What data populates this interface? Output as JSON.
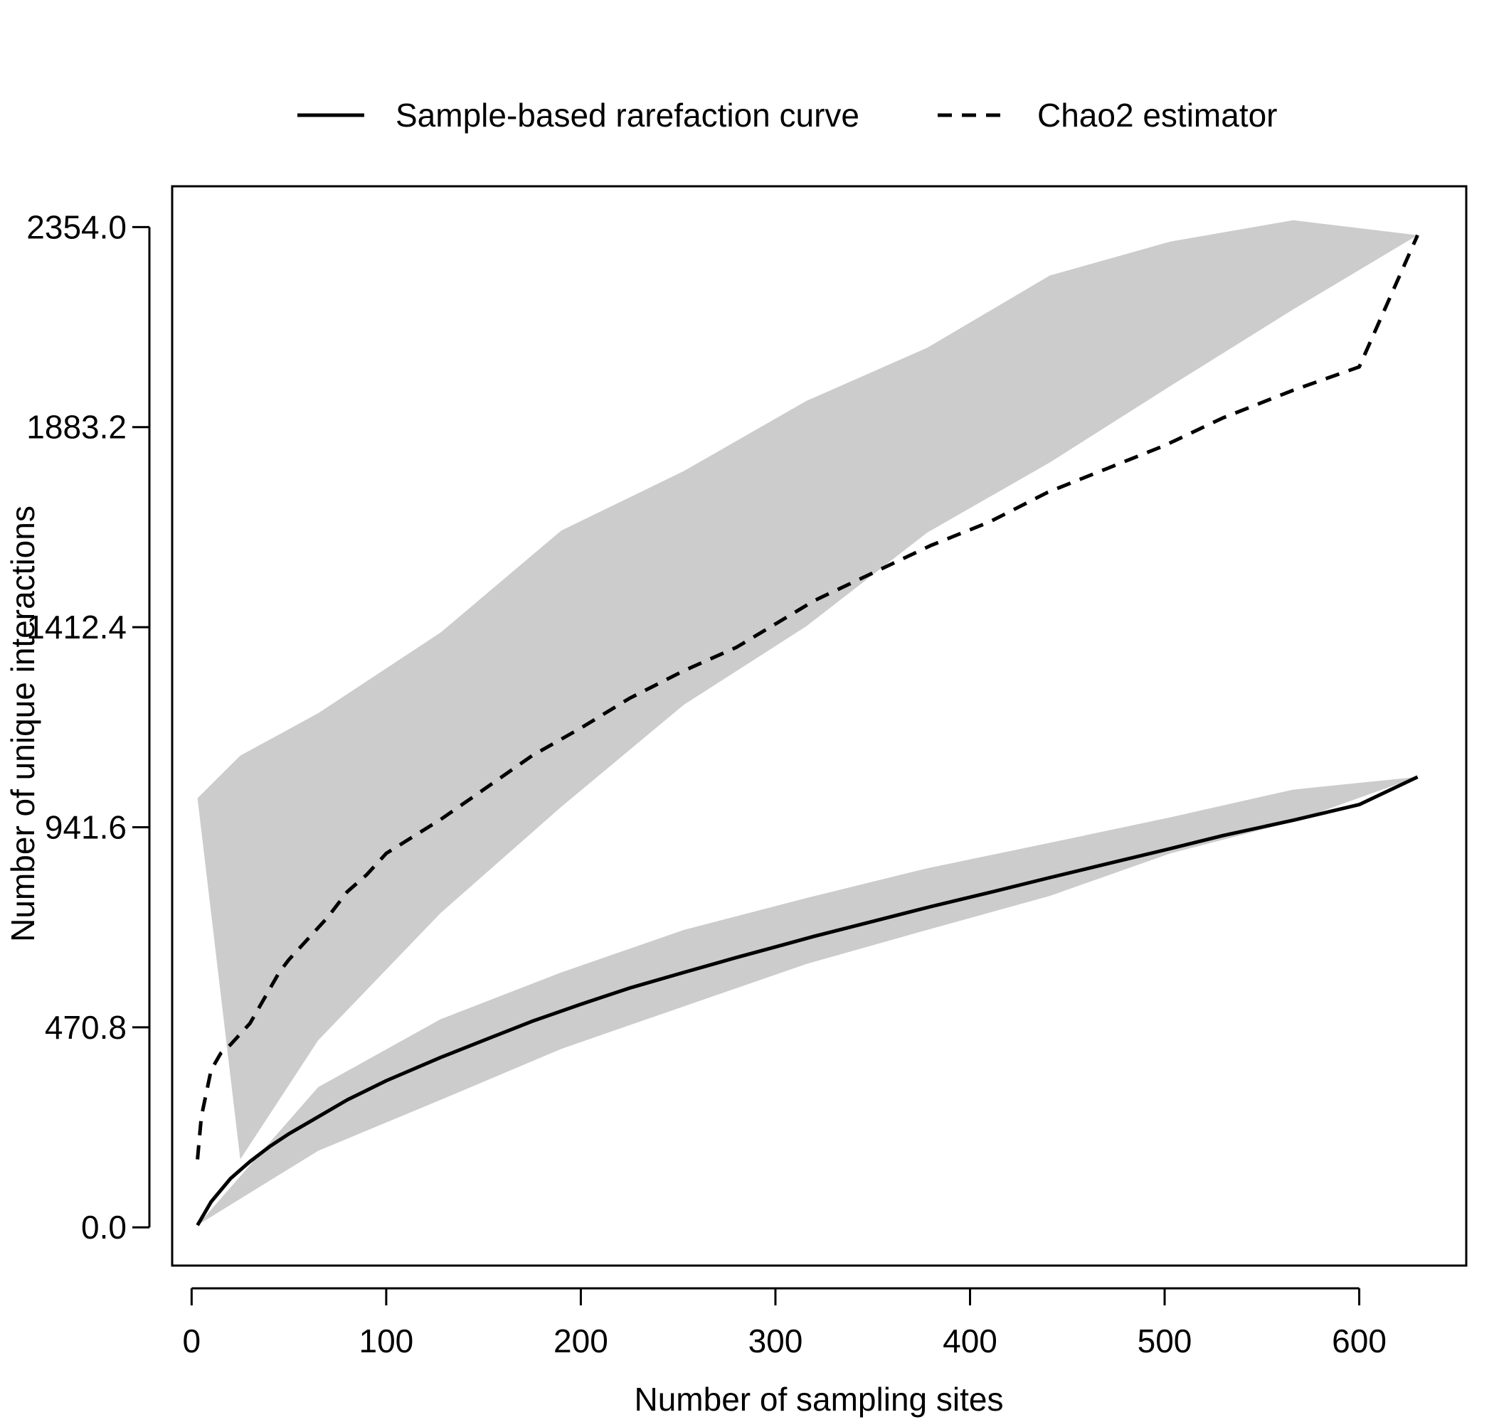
{
  "chart_data": {
    "type": "line",
    "xlabel": "Number of sampling sites",
    "ylabel": "Number of unique interactions",
    "xlim": [
      -10,
      655
    ],
    "ylim": [
      -90,
      2450
    ],
    "x_ticks": [
      0,
      100,
      200,
      300,
      400,
      500,
      600
    ],
    "x_tick_labels": [
      "0",
      "100",
      "200",
      "300",
      "400",
      "500",
      "600"
    ],
    "y_ticks": [
      0,
      470.8,
      941.6,
      1412.4,
      1883.2,
      2354.0
    ],
    "y_tick_labels": [
      "0.0",
      "470.8",
      "941.6",
      "1412.4",
      "1883.2",
      "2354.0"
    ],
    "grid": false,
    "legend_position": "top",
    "colors": {
      "band": "#cccccc",
      "line": "#000000"
    },
    "series": [
      {
        "name": "Sample-based rarefaction curve",
        "line_style": "solid",
        "x": [
          3,
          10,
          20,
          30,
          40,
          50,
          65,
          80,
          100,
          128,
          150,
          175,
          200,
          225,
          253,
          280,
          300,
          320,
          350,
          380,
          410,
          440,
          470,
          500,
          530,
          566,
          600,
          630
        ],
        "y": [
          5,
          60,
          115,
          155,
          190,
          220,
          260,
          300,
          345,
          400,
          440,
          485,
          525,
          563,
          600,
          635,
          660,
          685,
          720,
          755,
          788,
          822,
          855,
          888,
          922,
          958,
          995,
          1060
        ],
        "band_x": [
          3,
          65,
          128,
          190,
          253,
          316,
          378,
          441,
          503,
          566,
          630
        ],
        "band_upper": [
          5,
          330,
          490,
          600,
          700,
          775,
          845,
          905,
          965,
          1030,
          1060
        ],
        "band_lower": [
          5,
          180,
          300,
          420,
          520,
          620,
          700,
          780,
          880,
          955,
          1060
        ]
      },
      {
        "name": "Chao2 estimator",
        "line_style": "dashed",
        "x": [
          3,
          5,
          10,
          15,
          20,
          25,
          30,
          35,
          40,
          45,
          50,
          60,
          70,
          80,
          90,
          100,
          128,
          150,
          175,
          200,
          225,
          253,
          280,
          300,
          320,
          350,
          380,
          410,
          440,
          470,
          500,
          530,
          566,
          600,
          630
        ],
        "y": [
          160,
          260,
          370,
          410,
          430,
          455,
          480,
          520,
          560,
          600,
          630,
          680,
          730,
          790,
          830,
          880,
          960,
          1030,
          1110,
          1175,
          1245,
          1310,
          1365,
          1420,
          1475,
          1540,
          1605,
          1660,
          1730,
          1785,
          1840,
          1905,
          1970,
          2025,
          2335
        ],
        "band_x": [
          3,
          25,
          65,
          128,
          190,
          253,
          316,
          378,
          441,
          503,
          566,
          630
        ],
        "band_upper": [
          1010,
          1110,
          1210,
          1400,
          1640,
          1780,
          1945,
          2070,
          2240,
          2320,
          2370,
          2335
        ],
        "band_lower": [
          1010,
          160,
          440,
          740,
          990,
          1230,
          1415,
          1635,
          1800,
          1980,
          2160,
          2335
        ]
      }
    ]
  }
}
